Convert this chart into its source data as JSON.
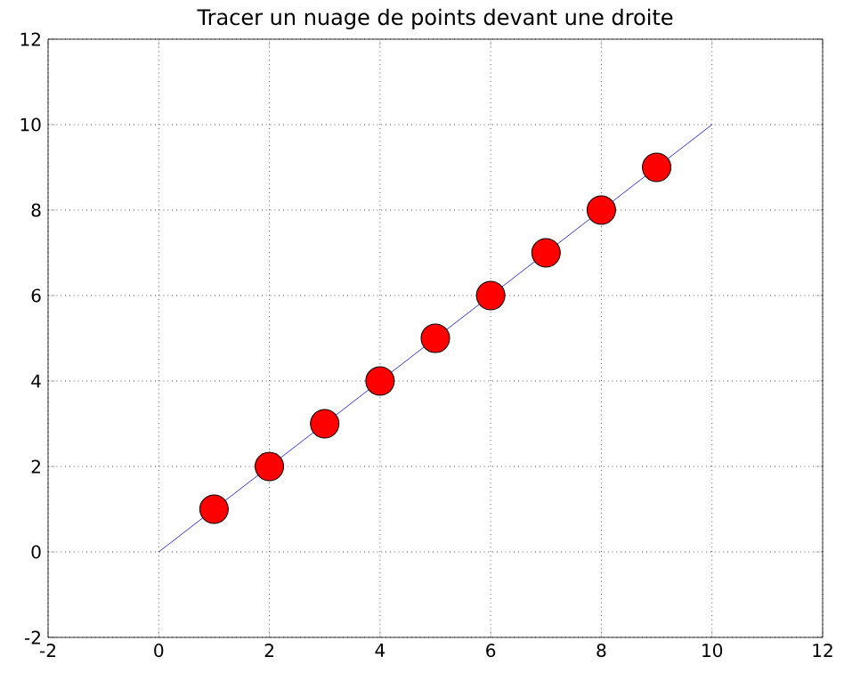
{
  "chart_data": {
    "type": "scatter",
    "title": "Tracer un nuage de points devant une droite",
    "xlim": [
      -2,
      12
    ],
    "ylim": [
      -2,
      12
    ],
    "xticks": [
      -2,
      0,
      2,
      4,
      6,
      8,
      10,
      12
    ],
    "yticks": [
      -2,
      0,
      2,
      4,
      6,
      8,
      10,
      12
    ],
    "grid": true,
    "series": [
      {
        "type": "line",
        "color": "#0000ff",
        "x": [
          0,
          10
        ],
        "values": [
          0,
          10
        ],
        "marker": "none",
        "line_style": "solid"
      },
      {
        "color": "#ff0000",
        "x": [
          1,
          2,
          3,
          4,
          5,
          6,
          7,
          8,
          9
        ],
        "values": [
          1,
          2,
          3,
          4,
          5,
          6,
          7,
          8,
          9
        ],
        "marker": "circle"
      }
    ]
  }
}
